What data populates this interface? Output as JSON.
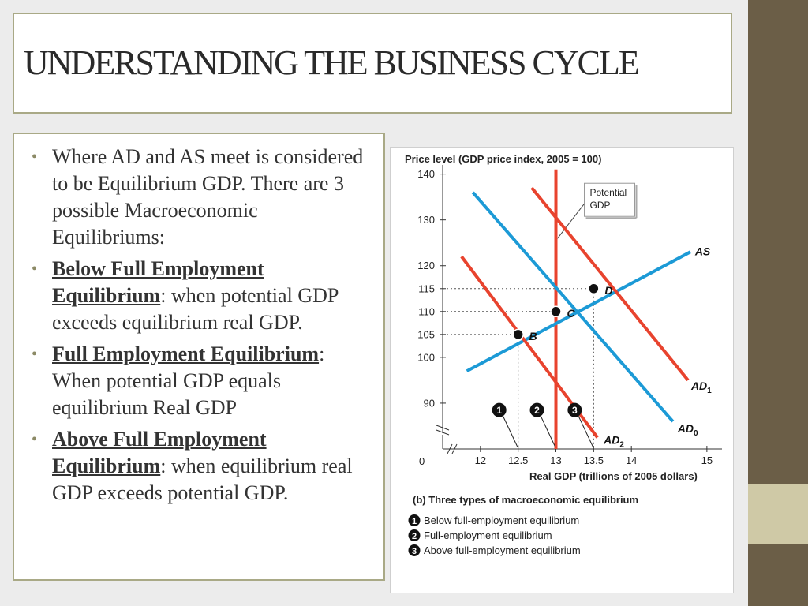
{
  "slide": {
    "title": "UNDERSTANDING THE BUSINESS CYCLE",
    "bullets": [
      {
        "lead": "",
        "text": "Where AD and AS meet is considered to be Equilibrium GDP. There are 3 possible Macroeconomic Equilibriums:"
      },
      {
        "lead": "Below Full Employment Equilibrium",
        "text": ": when potential GDP exceeds equilibrium real GDP."
      },
      {
        "lead": "Full Employment Equilibrium",
        "text": ": When potential GDP equals equilibrium Real GDP"
      },
      {
        "lead": "Above Full Employment Equilibrium",
        "text": ": when equilibrium real GDP exceeds potential GDP."
      }
    ]
  },
  "colors": {
    "background": "#ececec",
    "right_bar": "#6b5e47",
    "right_bar_accent": "#cfc9a6",
    "frame": "#a9a986",
    "bullet": "#8c8a66",
    "ad_curves": "#e8432e",
    "as_curve": "#1c9ad6",
    "potential_gdp": "#e8432e"
  },
  "chart_data": {
    "type": "line",
    "ylabel": "Price level (GDP price index, 2005 = 100)",
    "xlabel": "Real GDP (trillions of 2005 dollars)",
    "caption": "(b) Three types of macroeconomic equilibrium",
    "xlim": [
      11.5,
      15.2
    ],
    "ylim": [
      80,
      142
    ],
    "x_ticks": [
      "12",
      "12.5",
      "13",
      "13.5",
      "14",
      "15"
    ],
    "x_tick_values": [
      12,
      12.5,
      13,
      13.5,
      14,
      15
    ],
    "y_ticks": [
      140,
      130,
      120,
      115,
      110,
      105,
      100,
      90
    ],
    "origin_label": "0",
    "series": [
      {
        "name": "AS",
        "label_main": "AS",
        "label_sub": "",
        "color": "#1c9ad6",
        "points": [
          [
            11.82,
            97
          ],
          [
            14.78,
            123
          ]
        ]
      },
      {
        "name": "AD1",
        "label_main": "AD",
        "label_sub": "1",
        "color": "#e8432e",
        "points": [
          [
            12.68,
            137
          ],
          [
            14.75,
            95
          ]
        ]
      },
      {
        "name": "AD0",
        "label_main": "AD",
        "label_sub": "0",
        "color": "#1c9ad6",
        "points": [
          [
            11.9,
            136
          ],
          [
            14.55,
            86
          ]
        ]
      },
      {
        "name": "AD2",
        "label_main": "AD",
        "label_sub": "2",
        "color": "#e8432e",
        "points": [
          [
            11.75,
            122
          ],
          [
            13.55,
            82.5
          ]
        ]
      }
    ],
    "potential_gdp": {
      "label_line1": "Potential",
      "label_line2": "GDP",
      "x": 13.0
    },
    "equilibria": [
      {
        "label": "B",
        "x": 12.5,
        "y": 105
      },
      {
        "label": "C",
        "x": 13.0,
        "y": 110
      },
      {
        "label": "D",
        "x": 13.5,
        "y": 115
      }
    ],
    "markers": [
      {
        "label": "1",
        "x": 12.5
      },
      {
        "label": "2",
        "x": 13.0
      },
      {
        "label": "3",
        "x": 13.5
      }
    ],
    "legend": [
      {
        "number": "1",
        "text": "Below full-employment equilibrium"
      },
      {
        "number": "2",
        "text": "Full-employment equilibrium"
      },
      {
        "number": "3",
        "text": "Above full-employment equilibrium"
      }
    ]
  }
}
